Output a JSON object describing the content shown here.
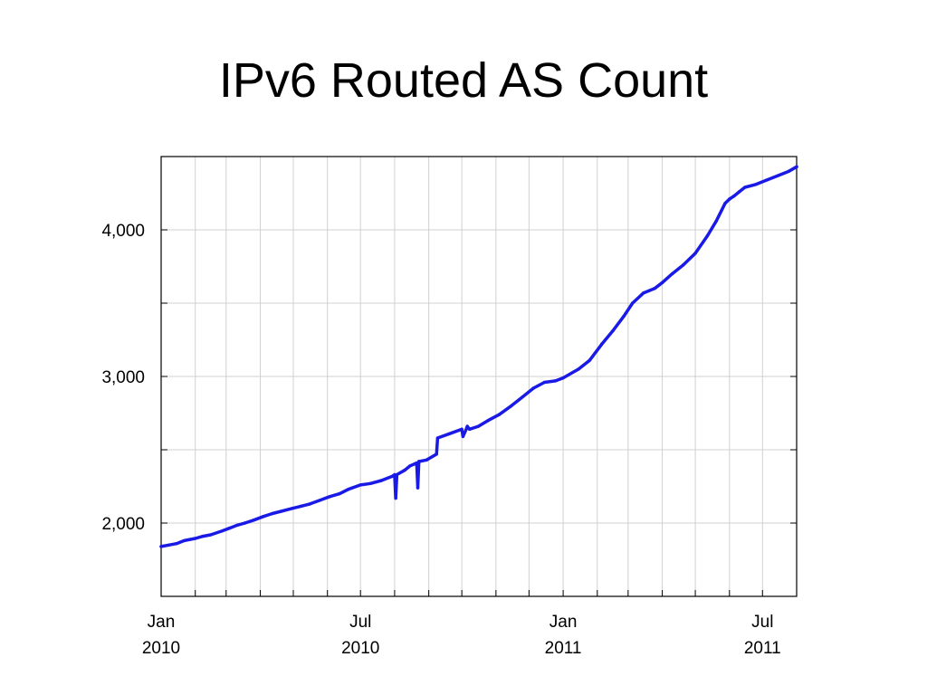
{
  "slide": {
    "title": "IPv6 Routed AS Count"
  },
  "chart_data": {
    "type": "line",
    "title": "IPv6 Routed AS Count",
    "xlabel": "",
    "ylabel": "",
    "x_ticks": [
      {
        "date": "2010-01-01",
        "label": [
          "Jan",
          "2010"
        ]
      },
      {
        "date": "2010-07-01",
        "label": [
          "Jul",
          "2010"
        ]
      },
      {
        "date": "2011-01-01",
        "label": [
          "Jan",
          "2011"
        ]
      },
      {
        "date": "2011-07-01",
        "label": [
          "Jul",
          "2011"
        ]
      }
    ],
    "y_ticks": [
      {
        "value": 2000,
        "label": "2,000"
      },
      {
        "value": 3000,
        "label": "3,000"
      },
      {
        "value": 4000,
        "label": "4,000"
      }
    ],
    "xlim": [
      "2010-01-01",
      "2011-08-01"
    ],
    "ylim": [
      1500,
      4500
    ],
    "grid": true,
    "color": "#1a1ae6",
    "series": [
      {
        "x": [
          "2010-01-01",
          "2010-01-08",
          "2010-01-15",
          "2010-01-22",
          "2010-02-01",
          "2010-02-08",
          "2010-02-15",
          "2010-02-25",
          "2010-03-04",
          "2010-03-11",
          "2010-03-18",
          "2010-03-26",
          "2010-04-04",
          "2010-04-12",
          "2010-04-20",
          "2010-04-30",
          "2010-05-08",
          "2010-05-16",
          "2010-05-25",
          "2010-06-03",
          "2010-06-12",
          "2010-06-20",
          "2010-07-01",
          "2010-07-10",
          "2010-07-20",
          "2010-07-30",
          "2010-08-01",
          "2010-08-02",
          "2010-08-03",
          "2010-08-10",
          "2010-08-15",
          "2010-08-21",
          "2010-08-22",
          "2010-08-23",
          "2010-08-30",
          "2010-09-08",
          "2010-09-09",
          "2010-09-20",
          "2010-10-01",
          "2010-10-02",
          "2010-10-05",
          "2010-10-06",
          "2010-10-08",
          "2010-10-16",
          "2010-10-25",
          "2010-11-04",
          "2010-11-15",
          "2010-11-25",
          "2010-12-05",
          "2010-12-15",
          "2010-12-25",
          "2011-01-01",
          "2011-01-15",
          "2011-01-25",
          "2011-02-05",
          "2011-02-15",
          "2011-02-25",
          "2011-03-05",
          "2011-03-15",
          "2011-03-25",
          "2011-04-01",
          "2011-04-10",
          "2011-04-20",
          "2011-05-01",
          "2011-05-12",
          "2011-05-20",
          "2011-05-28",
          "2011-06-01",
          "2011-06-05",
          "2011-06-10",
          "2011-06-15",
          "2011-06-25",
          "2011-07-05",
          "2011-07-15",
          "2011-07-25",
          "2011-08-01"
        ],
        "values": [
          1840,
          1850,
          1860,
          1880,
          1895,
          1910,
          1920,
          1945,
          1965,
          1985,
          2000,
          2020,
          2045,
          2065,
          2080,
          2100,
          2115,
          2130,
          2155,
          2180,
          2200,
          2230,
          2260,
          2270,
          2290,
          2320,
          2330,
          2170,
          2330,
          2360,
          2390,
          2410,
          2240,
          2420,
          2430,
          2470,
          2580,
          2610,
          2640,
          2590,
          2640,
          2660,
          2640,
          2660,
          2700,
          2740,
          2800,
          2860,
          2920,
          2960,
          2970,
          2990,
          3050,
          3110,
          3220,
          3310,
          3410,
          3500,
          3570,
          3600,
          3640,
          3700,
          3760,
          3840,
          3960,
          4060,
          4180,
          4210,
          4230,
          4260,
          4290,
          4310,
          4340,
          4370,
          4400,
          4430
        ]
      }
    ]
  }
}
